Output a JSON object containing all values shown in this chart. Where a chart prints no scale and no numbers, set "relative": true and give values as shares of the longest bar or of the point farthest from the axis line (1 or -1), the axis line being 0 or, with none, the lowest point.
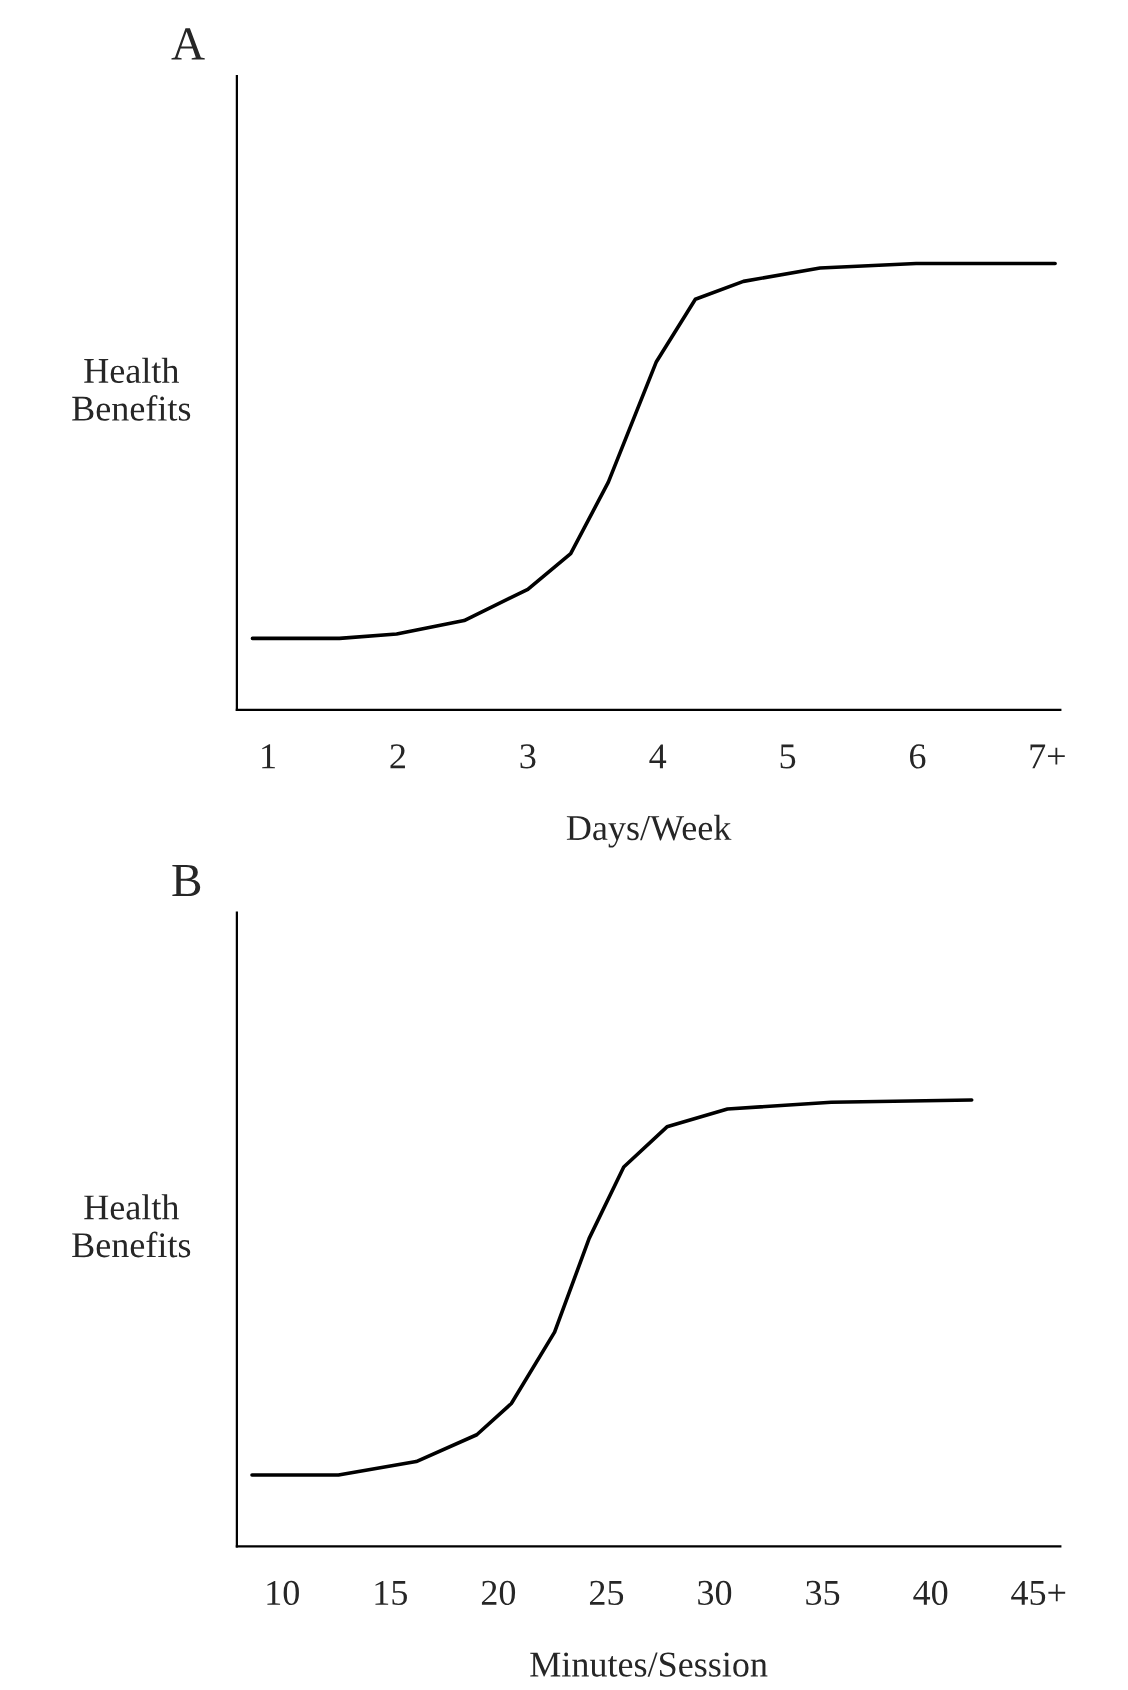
{
  "chart_data": [
    {
      "type": "line",
      "title": "A",
      "xlabel": "Days/Week",
      "ylabel": "Health\nBenefits",
      "relative": true,
      "grid": false,
      "marker": "none",
      "line_style": "solid",
      "xlim": [
        0.76,
        7.1
      ],
      "xticks": [
        1,
        2,
        3,
        4,
        5,
        6,
        {
          "value": 7,
          "label": "7+"
        }
      ],
      "series": [
        {
          "color": "#000000",
          "x": [
            0.88,
            1.55,
            1.99,
            2.51,
            3.0,
            3.33,
            3.62,
            3.99,
            4.29,
            4.66,
            5.25,
            5.99,
            7.06
          ],
          "values": [
            0.16,
            0.16,
            0.17,
            0.2,
            0.27,
            0.35,
            0.51,
            0.78,
            0.92,
            0.96,
            0.99,
            1.0,
            1.0
          ]
        }
      ]
    },
    {
      "type": "line",
      "title": "B",
      "xlabel": "Minutes/Session",
      "ylabel": "Health\nBenefits",
      "relative": true,
      "grid": false,
      "marker": "none",
      "line_style": "solid",
      "xlim": [
        7.9,
        46
      ],
      "xticks": [
        10,
        15,
        20,
        25,
        30,
        35,
        40,
        {
          "value": 45,
          "label": "45+"
        }
      ],
      "series": [
        {
          "color": "#000000",
          "x": [
            8.6,
            12.6,
            16.2,
            19.0,
            20.6,
            22.6,
            24.2,
            25.8,
            27.8,
            30.6,
            35.4,
            41.9
          ],
          "values": [
            0.16,
            0.16,
            0.19,
            0.25,
            0.32,
            0.48,
            0.69,
            0.85,
            0.94,
            0.98,
            0.995,
            1.0
          ]
        }
      ]
    }
  ]
}
